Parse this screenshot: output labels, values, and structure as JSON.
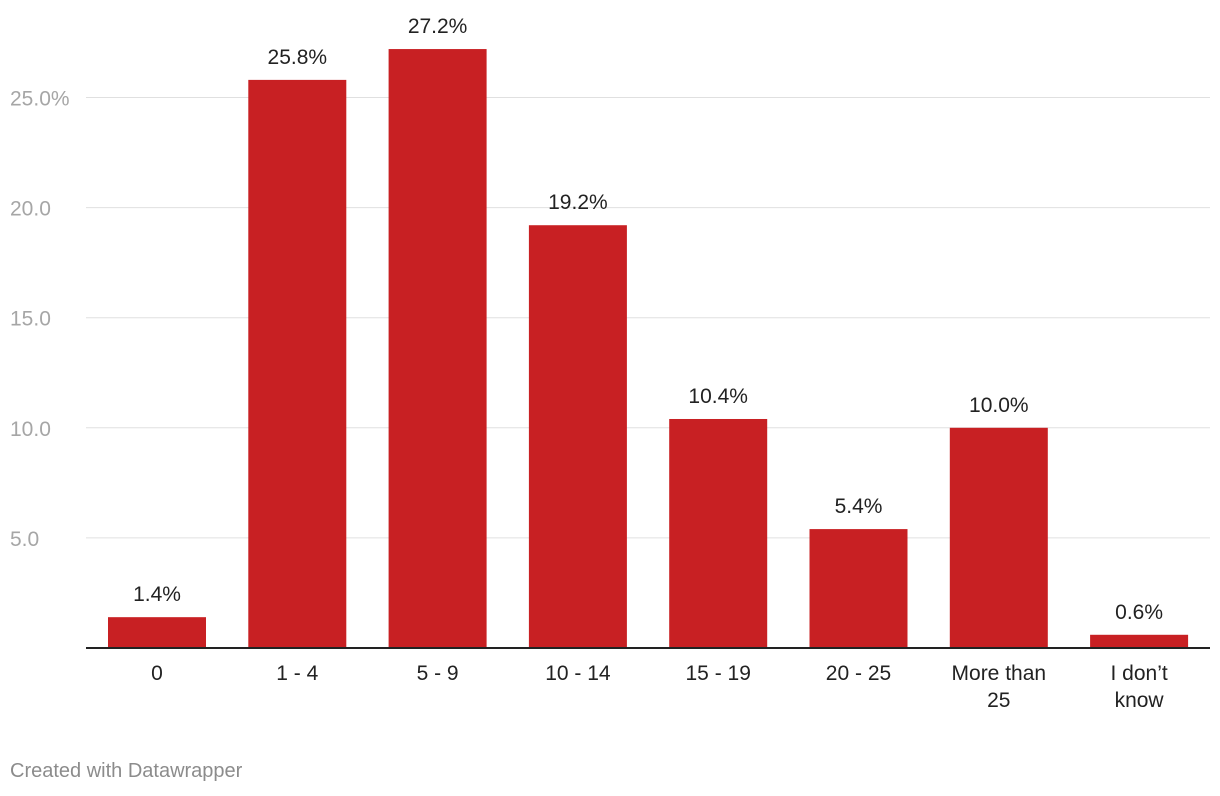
{
  "chart_data": {
    "type": "bar",
    "categories": [
      "0",
      "1 - 4",
      "5 - 9",
      "10 - 14",
      "15 - 19",
      "20 - 25",
      "More than 25",
      "I don’t know"
    ],
    "values": [
      1.4,
      25.8,
      27.2,
      19.2,
      10.4,
      5.4,
      10.0,
      0.6
    ],
    "data_labels": [
      "1.4%",
      "25.8%",
      "27.2%",
      "19.2%",
      "10.4%",
      "5.4%",
      "10.0%",
      "0.6%"
    ],
    "yticks": [
      5.0,
      10.0,
      15.0,
      20.0,
      25.0
    ],
    "ytick_labels": [
      "5.0",
      "10.0",
      "15.0",
      "20.0",
      "25.0%"
    ],
    "ylim": [
      0,
      27.2
    ],
    "grid": true,
    "title": "",
    "xlabel": "",
    "ylabel": "",
    "bar_color": "#c82023",
    "grid_color": "#e0e0e0",
    "axis_color": "#222222"
  },
  "credit": "Created with Datawrapper"
}
